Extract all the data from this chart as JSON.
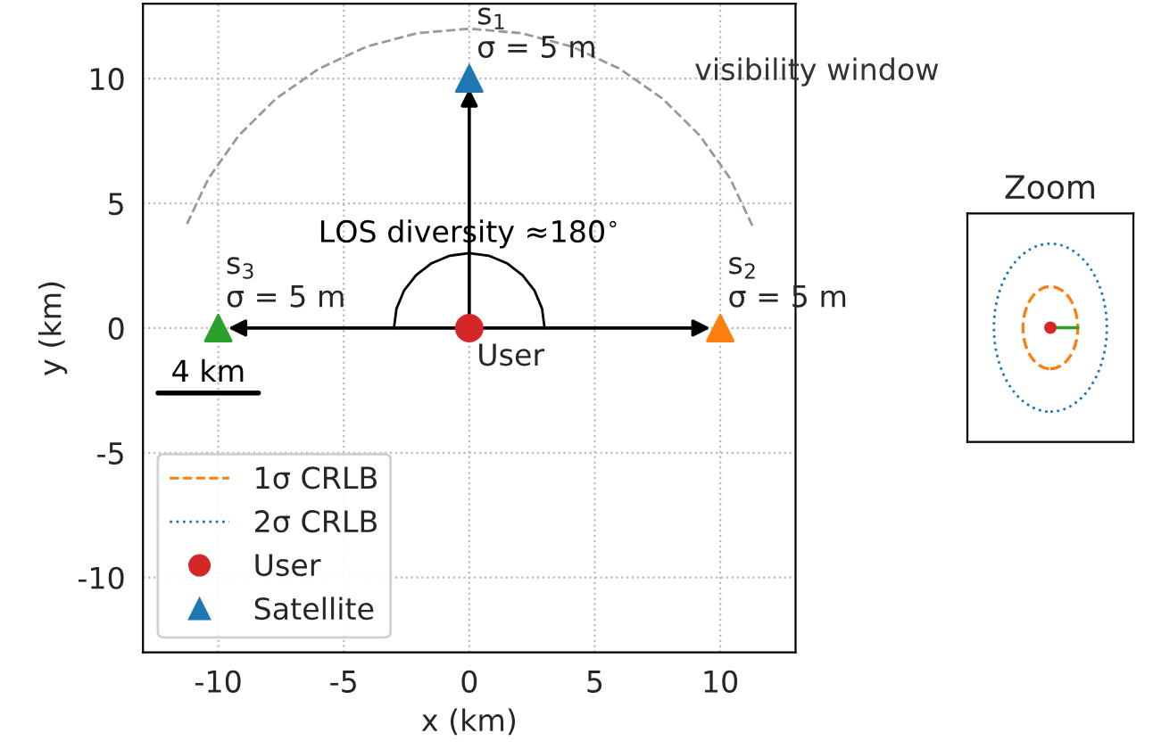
{
  "chart_data": [
    {
      "type": "scatter",
      "xlabel": "x (km)",
      "ylabel": "y (km)",
      "xlim": [
        -13,
        13
      ],
      "ylim": [
        -13,
        13
      ],
      "xticks": [
        -10,
        -5,
        0,
        5,
        10
      ],
      "yticks": [
        -10,
        -5,
        0,
        5,
        10
      ],
      "grid": true,
      "legend": "lower left",
      "series": [
        {
          "name": "1σ CRLB",
          "type": "line",
          "line_style": "dashed",
          "color": "#ff7f0e"
        },
        {
          "name": "2σ CRLB",
          "type": "line",
          "line_style": "dotted",
          "color": "#1f77b4"
        },
        {
          "name": "User",
          "marker": "circle",
          "color": "#d62728",
          "x": [
            0
          ],
          "values": [
            0
          ]
        },
        {
          "name": "Satellite",
          "marker": "triangle",
          "color": "#1f77b4",
          "colors": [
            "#1f77b4",
            "#ff7f0e",
            "#2ca02c"
          ],
          "x": [
            0,
            10,
            -10
          ],
          "values": [
            10,
            0,
            0
          ]
        },
        {
          "type": "line",
          "line_style": "dashed",
          "color": "#999999",
          "x": [
            11.28,
            10.39,
            9.19,
            7.71,
            6,
            4.1,
            2.08,
            0,
            -2.08,
            -4.1,
            -6,
            -7.71,
            -9.19,
            -10.39,
            -11.28
          ],
          "values": [
            4.1,
            6,
            7.71,
            9.19,
            10.39,
            11.28,
            11.82,
            12,
            11.82,
            11.28,
            10.39,
            9.19,
            7.71,
            6,
            4.1
          ]
        },
        {
          "type": "line",
          "line_style": "solid",
          "color": "#000000",
          "x": [
            3,
            2.9,
            2.6,
            2.12,
            1.5,
            0.78,
            0,
            -0.78,
            -1.5,
            -2.12,
            -2.6,
            -2.9,
            -3
          ],
          "values": [
            0,
            0.78,
            1.5,
            2.12,
            2.6,
            2.9,
            3,
            2.9,
            2.6,
            2.12,
            1.5,
            0.78,
            0
          ]
        }
      ],
      "annotations": [
        {
          "text": "s$_{1}$\nσ = 5 m",
          "x": 0,
          "y": 10
        },
        {
          "text": "s$_{2}$\nσ = 5 m",
          "x": 10,
          "y": 0
        },
        {
          "text": "s$_{3}$\nσ = 5 m",
          "x": -10,
          "y": 0
        },
        {
          "text": "User",
          "x": 0,
          "y": 0
        },
        "visibility window",
        "LOS diversity ≈180$^{∘}$",
        "4 km"
      ]
    },
    {
      "type": "other",
      "title": "Zoom"
    }
  ]
}
